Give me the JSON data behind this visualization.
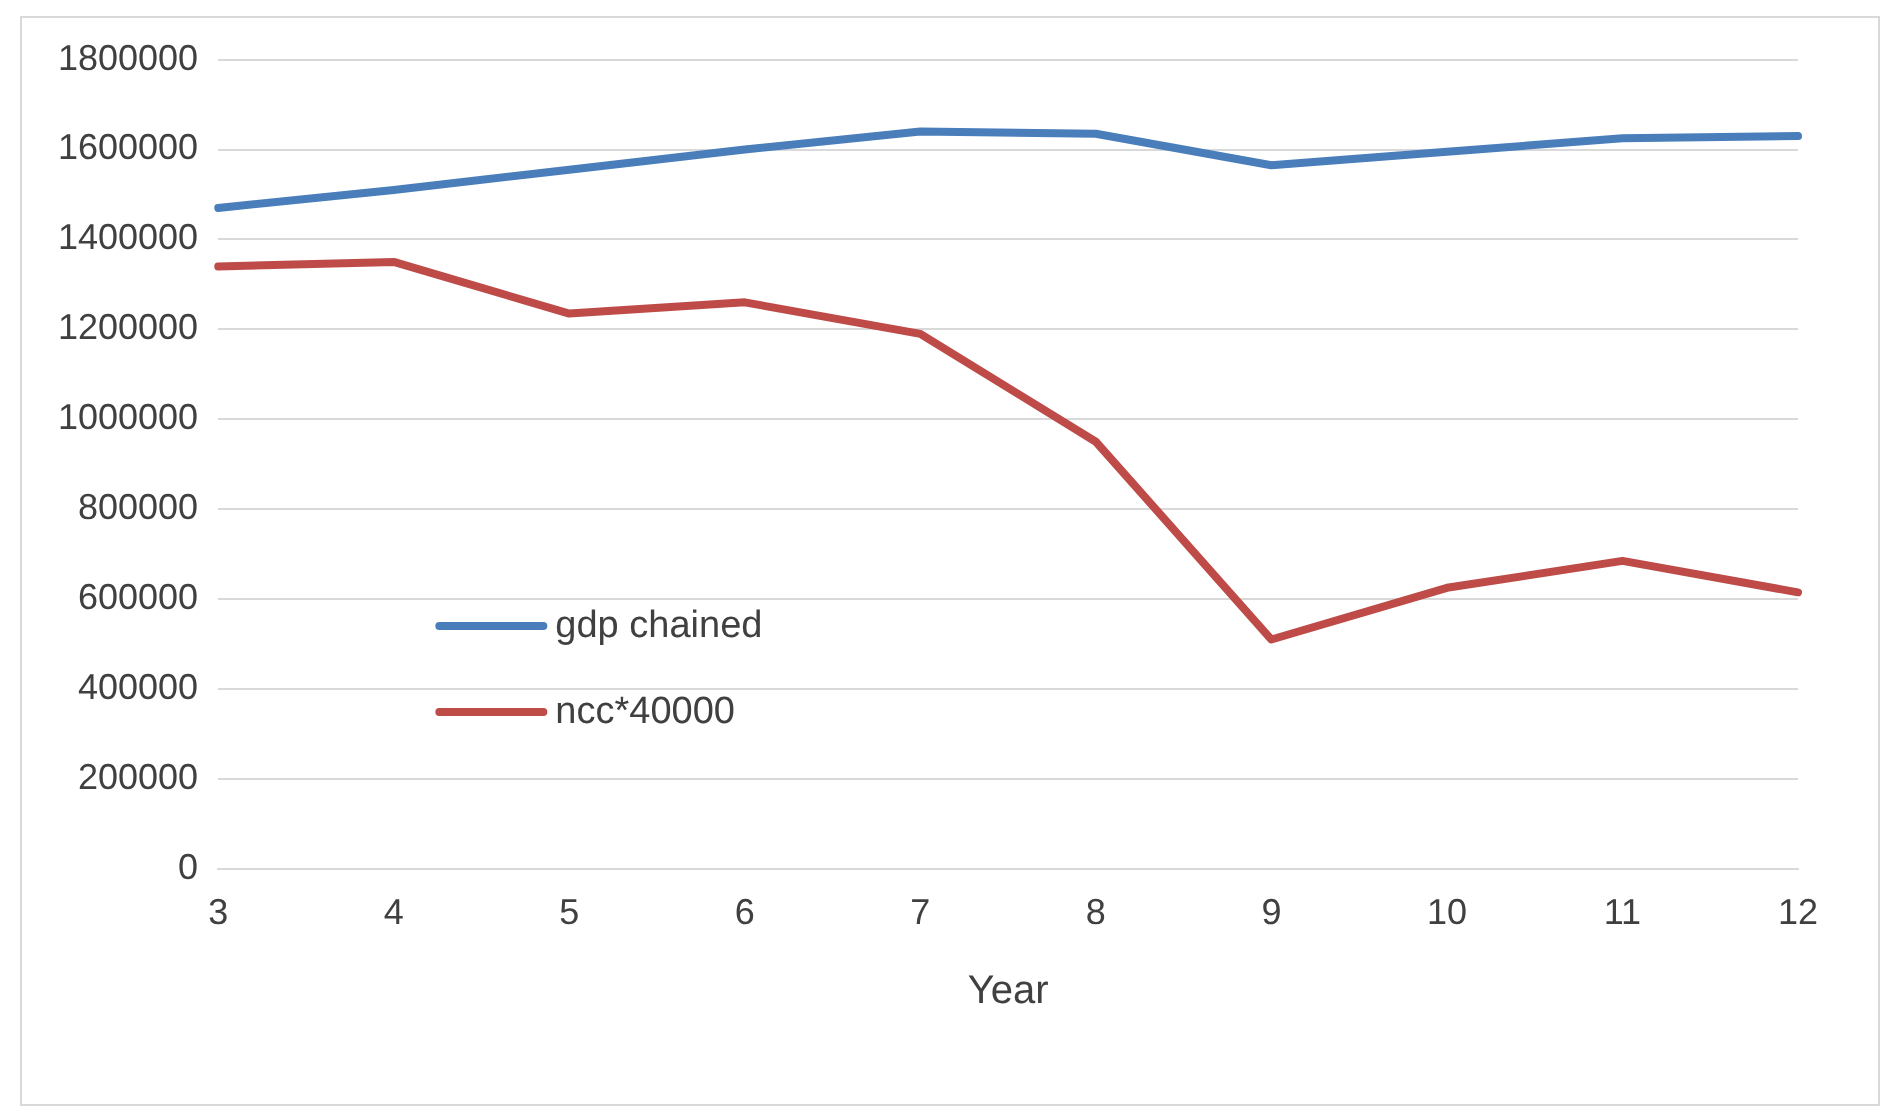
{
  "chart_data": {
    "type": "line",
    "xlabel": "Year",
    "categories": [
      "3",
      "4",
      "5",
      "6",
      "7",
      "8",
      "9",
      "10",
      "11",
      "12"
    ],
    "series": [
      {
        "name": "gdp chained",
        "color": "#4a7ebb",
        "values": [
          1470000,
          1510000,
          1555000,
          1600000,
          1640000,
          1635000,
          1565000,
          1595000,
          1625000,
          1630000
        ]
      },
      {
        "name": "ncc*40000",
        "color": "#be4b48",
        "values": [
          1340000,
          1350000,
          1235000,
          1260000,
          1190000,
          950000,
          510000,
          625000,
          685000,
          615000
        ]
      }
    ],
    "ylim": [
      0,
      1800000
    ],
    "yticks": [
      0,
      200000,
      400000,
      600000,
      800000,
      1000000,
      1200000,
      1400000,
      1600000,
      1800000
    ],
    "grid": "y",
    "legend": "left",
    "marker": "none",
    "line_style": "solid"
  }
}
